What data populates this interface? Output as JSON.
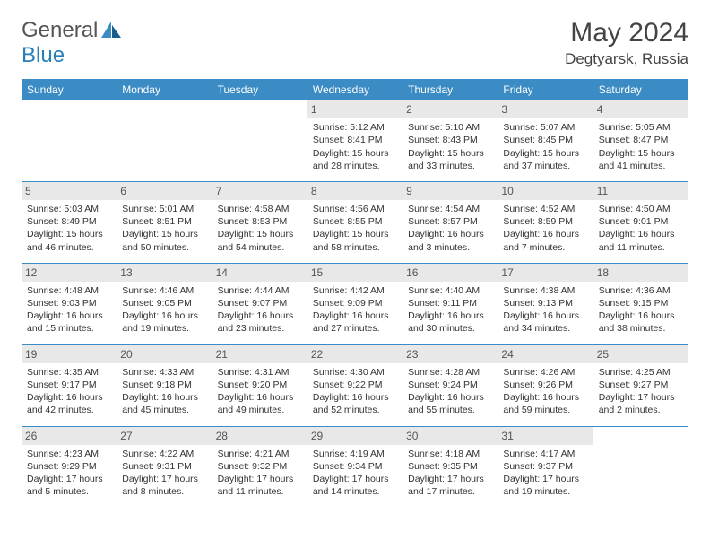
{
  "brand": {
    "general": "General",
    "blue": "Blue"
  },
  "title": "May 2024",
  "location": "Degtyarsk, Russia",
  "colors": {
    "header_bg": "#3b8bc4",
    "border": "#3b8bc4",
    "daynum_bg": "#e8e8e8",
    "text": "#333333",
    "logo_gray": "#555555",
    "logo_blue": "#2a7fba"
  },
  "days_of_week": [
    "Sunday",
    "Monday",
    "Tuesday",
    "Wednesday",
    "Thursday",
    "Friday",
    "Saturday"
  ],
  "weeks": [
    [
      null,
      null,
      null,
      {
        "n": "1",
        "sr": "5:12 AM",
        "ss": "8:41 PM",
        "dl1": "Daylight: 15 hours",
        "dl2": "and 28 minutes."
      },
      {
        "n": "2",
        "sr": "5:10 AM",
        "ss": "8:43 PM",
        "dl1": "Daylight: 15 hours",
        "dl2": "and 33 minutes."
      },
      {
        "n": "3",
        "sr": "5:07 AM",
        "ss": "8:45 PM",
        "dl1": "Daylight: 15 hours",
        "dl2": "and 37 minutes."
      },
      {
        "n": "4",
        "sr": "5:05 AM",
        "ss": "8:47 PM",
        "dl1": "Daylight: 15 hours",
        "dl2": "and 41 minutes."
      }
    ],
    [
      {
        "n": "5",
        "sr": "5:03 AM",
        "ss": "8:49 PM",
        "dl1": "Daylight: 15 hours",
        "dl2": "and 46 minutes."
      },
      {
        "n": "6",
        "sr": "5:01 AM",
        "ss": "8:51 PM",
        "dl1": "Daylight: 15 hours",
        "dl2": "and 50 minutes."
      },
      {
        "n": "7",
        "sr": "4:58 AM",
        "ss": "8:53 PM",
        "dl1": "Daylight: 15 hours",
        "dl2": "and 54 minutes."
      },
      {
        "n": "8",
        "sr": "4:56 AM",
        "ss": "8:55 PM",
        "dl1": "Daylight: 15 hours",
        "dl2": "and 58 minutes."
      },
      {
        "n": "9",
        "sr": "4:54 AM",
        "ss": "8:57 PM",
        "dl1": "Daylight: 16 hours",
        "dl2": "and 3 minutes."
      },
      {
        "n": "10",
        "sr": "4:52 AM",
        "ss": "8:59 PM",
        "dl1": "Daylight: 16 hours",
        "dl2": "and 7 minutes."
      },
      {
        "n": "11",
        "sr": "4:50 AM",
        "ss": "9:01 PM",
        "dl1": "Daylight: 16 hours",
        "dl2": "and 11 minutes."
      }
    ],
    [
      {
        "n": "12",
        "sr": "4:48 AM",
        "ss": "9:03 PM",
        "dl1": "Daylight: 16 hours",
        "dl2": "and 15 minutes."
      },
      {
        "n": "13",
        "sr": "4:46 AM",
        "ss": "9:05 PM",
        "dl1": "Daylight: 16 hours",
        "dl2": "and 19 minutes."
      },
      {
        "n": "14",
        "sr": "4:44 AM",
        "ss": "9:07 PM",
        "dl1": "Daylight: 16 hours",
        "dl2": "and 23 minutes."
      },
      {
        "n": "15",
        "sr": "4:42 AM",
        "ss": "9:09 PM",
        "dl1": "Daylight: 16 hours",
        "dl2": "and 27 minutes."
      },
      {
        "n": "16",
        "sr": "4:40 AM",
        "ss": "9:11 PM",
        "dl1": "Daylight: 16 hours",
        "dl2": "and 30 minutes."
      },
      {
        "n": "17",
        "sr": "4:38 AM",
        "ss": "9:13 PM",
        "dl1": "Daylight: 16 hours",
        "dl2": "and 34 minutes."
      },
      {
        "n": "18",
        "sr": "4:36 AM",
        "ss": "9:15 PM",
        "dl1": "Daylight: 16 hours",
        "dl2": "and 38 minutes."
      }
    ],
    [
      {
        "n": "19",
        "sr": "4:35 AM",
        "ss": "9:17 PM",
        "dl1": "Daylight: 16 hours",
        "dl2": "and 42 minutes."
      },
      {
        "n": "20",
        "sr": "4:33 AM",
        "ss": "9:18 PM",
        "dl1": "Daylight: 16 hours",
        "dl2": "and 45 minutes."
      },
      {
        "n": "21",
        "sr": "4:31 AM",
        "ss": "9:20 PM",
        "dl1": "Daylight: 16 hours",
        "dl2": "and 49 minutes."
      },
      {
        "n": "22",
        "sr": "4:30 AM",
        "ss": "9:22 PM",
        "dl1": "Daylight: 16 hours",
        "dl2": "and 52 minutes."
      },
      {
        "n": "23",
        "sr": "4:28 AM",
        "ss": "9:24 PM",
        "dl1": "Daylight: 16 hours",
        "dl2": "and 55 minutes."
      },
      {
        "n": "24",
        "sr": "4:26 AM",
        "ss": "9:26 PM",
        "dl1": "Daylight: 16 hours",
        "dl2": "and 59 minutes."
      },
      {
        "n": "25",
        "sr": "4:25 AM",
        "ss": "9:27 PM",
        "dl1": "Daylight: 17 hours",
        "dl2": "and 2 minutes."
      }
    ],
    [
      {
        "n": "26",
        "sr": "4:23 AM",
        "ss": "9:29 PM",
        "dl1": "Daylight: 17 hours",
        "dl2": "and 5 minutes."
      },
      {
        "n": "27",
        "sr": "4:22 AM",
        "ss": "9:31 PM",
        "dl1": "Daylight: 17 hours",
        "dl2": "and 8 minutes."
      },
      {
        "n": "28",
        "sr": "4:21 AM",
        "ss": "9:32 PM",
        "dl1": "Daylight: 17 hours",
        "dl2": "and 11 minutes."
      },
      {
        "n": "29",
        "sr": "4:19 AM",
        "ss": "9:34 PM",
        "dl1": "Daylight: 17 hours",
        "dl2": "and 14 minutes."
      },
      {
        "n": "30",
        "sr": "4:18 AM",
        "ss": "9:35 PM",
        "dl1": "Daylight: 17 hours",
        "dl2": "and 17 minutes."
      },
      {
        "n": "31",
        "sr": "4:17 AM",
        "ss": "9:37 PM",
        "dl1": "Daylight: 17 hours",
        "dl2": "and 19 minutes."
      },
      null
    ]
  ],
  "labels": {
    "sunrise": "Sunrise:",
    "sunset": "Sunset:"
  }
}
